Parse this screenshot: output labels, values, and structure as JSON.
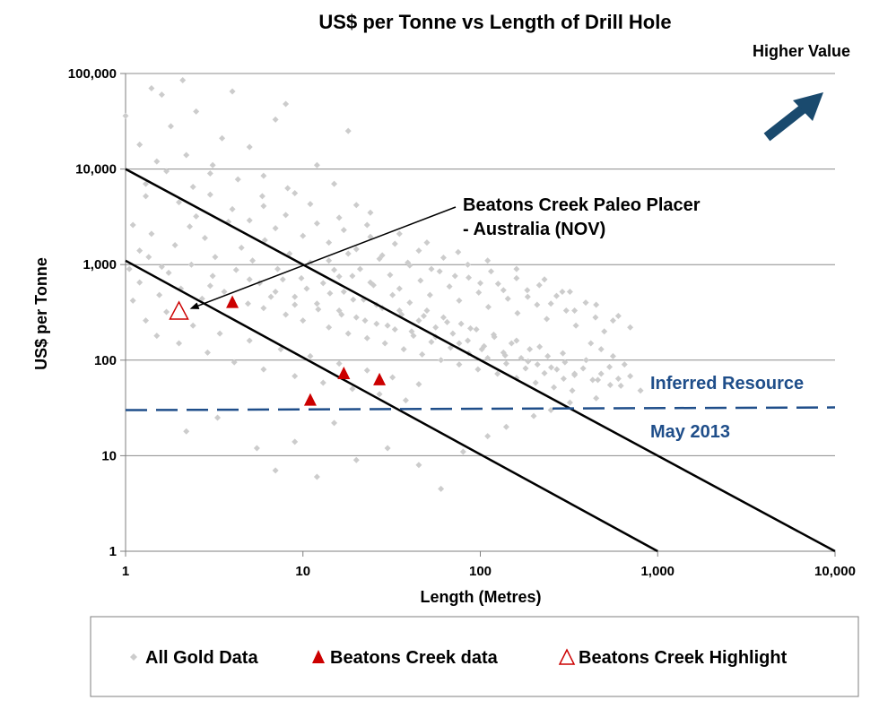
{
  "chart_data": {
    "type": "scatter",
    "title": "US$ per Tonne vs Length of Drill Hole",
    "xlabel": "Length (Metres)",
    "ylabel": "US$ per Tonne",
    "xscale": "log",
    "yscale": "log",
    "xlim": [
      1,
      10000
    ],
    "ylim": [
      1,
      100000
    ],
    "x_ticks": [
      {
        "value": 1,
        "label": "1"
      },
      {
        "value": 10,
        "label": "10"
      },
      {
        "value": 100,
        "label": "100"
      },
      {
        "value": 1000,
        "label": "1,000"
      },
      {
        "value": 10000,
        "label": "10,000"
      }
    ],
    "y_ticks": [
      {
        "value": 1,
        "label": "1"
      },
      {
        "value": 10,
        "label": "10"
      },
      {
        "value": 100,
        "label": "100"
      },
      {
        "value": 1000,
        "label": "1,000"
      },
      {
        "value": 10000,
        "label": "10,000"
      },
      {
        "value": 100000,
        "label": "100,000"
      }
    ],
    "grid": "horizontal",
    "legend_position": "bottom",
    "series": [
      {
        "name": "All Gold Data",
        "marker": "diamond",
        "color": "#cccccc",
        "points": [
          [
            1,
            36000
          ],
          [
            1.2,
            18000
          ],
          [
            1.4,
            70000
          ],
          [
            1.5,
            12000
          ],
          [
            1.3,
            5200
          ],
          [
            1.1,
            2600
          ],
          [
            1.6,
            60000
          ],
          [
            1.8,
            28000
          ],
          [
            2.1,
            85000
          ],
          [
            2.2,
            14000
          ],
          [
            2.5,
            40000
          ],
          [
            3,
            9000
          ],
          [
            3.5,
            21000
          ],
          [
            4,
            65000
          ],
          [
            5,
            17000
          ],
          [
            6,
            8500
          ],
          [
            7,
            33000
          ],
          [
            8,
            48000
          ],
          [
            9,
            5600
          ],
          [
            12,
            11000
          ],
          [
            15,
            7000
          ],
          [
            20,
            4200
          ],
          [
            24,
            3500
          ],
          [
            18,
            25000
          ],
          [
            1.2,
            1400
          ],
          [
            1.4,
            2100
          ],
          [
            1.6,
            950
          ],
          [
            1.9,
            1600
          ],
          [
            2.3,
            2500
          ],
          [
            2.8,
            1900
          ],
          [
            3.2,
            1200
          ],
          [
            3.8,
            2800
          ],
          [
            4.5,
            1500
          ],
          [
            5.2,
            1100
          ],
          [
            6.1,
            1800
          ],
          [
            7.2,
            900
          ],
          [
            8.4,
            1300
          ],
          [
            9.8,
            720
          ],
          [
            11,
            1050
          ],
          [
            13,
            640
          ],
          [
            15,
            880
          ],
          [
            17,
            520
          ],
          [
            19,
            760
          ],
          [
            22,
            430
          ],
          [
            25,
            610
          ],
          [
            28,
            350
          ],
          [
            32,
            480
          ],
          [
            36,
            300
          ],
          [
            40,
            400
          ],
          [
            45,
            260
          ],
          [
            50,
            330
          ],
          [
            56,
            220
          ],
          [
            62,
            280
          ],
          [
            70,
            190
          ],
          [
            78,
            240
          ],
          [
            85,
            160
          ],
          [
            95,
            210
          ],
          [
            105,
            140
          ],
          [
            120,
            175
          ],
          [
            135,
            120
          ],
          [
            150,
            150
          ],
          [
            170,
            105
          ],
          [
            190,
            130
          ],
          [
            210,
            90
          ],
          [
            240,
            110
          ],
          [
            270,
            80
          ],
          [
            300,
            95
          ],
          [
            340,
            70
          ],
          [
            380,
            82
          ],
          [
            430,
            62
          ],
          [
            480,
            72
          ],
          [
            540,
            55
          ],
          [
            600,
            64
          ],
          [
            3,
            600
          ],
          [
            4,
            420
          ],
          [
            5,
            700
          ],
          [
            6,
            350
          ],
          [
            7,
            520
          ],
          [
            8,
            300
          ],
          [
            9,
            460
          ],
          [
            10,
            260
          ],
          [
            12,
            390
          ],
          [
            14,
            220
          ],
          [
            16,
            330
          ],
          [
            18,
            190
          ],
          [
            20,
            280
          ],
          [
            23,
            170
          ],
          [
            26,
            240
          ],
          [
            29,
            150
          ],
          [
            33,
            210
          ],
          [
            37,
            130
          ],
          [
            42,
            180
          ],
          [
            47,
            115
          ],
          [
            53,
            155
          ],
          [
            60,
            100
          ],
          [
            68,
            135
          ],
          [
            76,
            90
          ],
          [
            86,
            118
          ],
          [
            97,
            80
          ],
          [
            110,
            105
          ],
          [
            125,
            72
          ],
          [
            140,
            92
          ],
          [
            160,
            65
          ],
          [
            180,
            82
          ],
          [
            205,
            58
          ],
          [
            230,
            73
          ],
          [
            260,
            52
          ],
          [
            295,
            64
          ],
          [
            330,
            48
          ],
          [
            2,
            4500
          ],
          [
            2.5,
            3200
          ],
          [
            3,
            5400
          ],
          [
            4,
            3800
          ],
          [
            5,
            2900
          ],
          [
            6,
            4100
          ],
          [
            7,
            2400
          ],
          [
            8,
            3300
          ],
          [
            10,
            2000
          ],
          [
            12,
            2700
          ],
          [
            14,
            1700
          ],
          [
            17,
            2300
          ],
          [
            20,
            1450
          ],
          [
            24,
            1950
          ],
          [
            28,
            1250
          ],
          [
            33,
            1650
          ],
          [
            39,
            1050
          ],
          [
            45,
            1400
          ],
          [
            53,
            900
          ],
          [
            62,
            1180
          ],
          [
            72,
            760
          ],
          [
            85,
            1000
          ],
          [
            100,
            640
          ],
          [
            115,
            850
          ],
          [
            135,
            540
          ],
          [
            160,
            720
          ],
          [
            185,
            460
          ],
          [
            215,
            610
          ],
          [
            250,
            390
          ],
          [
            290,
            520
          ],
          [
            340,
            330
          ],
          [
            1.1,
            420
          ],
          [
            1.3,
            260
          ],
          [
            1.5,
            180
          ],
          [
            1.7,
            320
          ],
          [
            2,
            150
          ],
          [
            2.4,
            230
          ],
          [
            2.9,
            120
          ],
          [
            3.4,
            190
          ],
          [
            4.1,
            95
          ],
          [
            5,
            160
          ],
          [
            6,
            80
          ],
          [
            7.5,
            130
          ],
          [
            9,
            68
          ],
          [
            11,
            110
          ],
          [
            13,
            58
          ],
          [
            16,
            92
          ],
          [
            19,
            50
          ],
          [
            23,
            78
          ],
          [
            27,
            44
          ],
          [
            32,
            66
          ],
          [
            38,
            38
          ],
          [
            45,
            56
          ],
          [
            2.2,
            18
          ],
          [
            3.3,
            25
          ],
          [
            5.5,
            12
          ],
          [
            7,
            7
          ],
          [
            12,
            6
          ],
          [
            9,
            14
          ],
          [
            15,
            22
          ],
          [
            20,
            9
          ],
          [
            30,
            12
          ],
          [
            45,
            8
          ],
          [
            60,
            4.5
          ],
          [
            80,
            11
          ],
          [
            110,
            16
          ],
          [
            140,
            20
          ],
          [
            200,
            26
          ],
          [
            250,
            30
          ],
          [
            320,
            36
          ],
          [
            450,
            40
          ],
          [
            1.05,
            900
          ],
          [
            1.2,
            650
          ],
          [
            1.35,
            1200
          ],
          [
            1.55,
            480
          ],
          [
            1.75,
            820
          ],
          [
            2.05,
            560
          ],
          [
            2.35,
            1000
          ],
          [
            2.7,
            440
          ],
          [
            3.1,
            760
          ],
          [
            3.6,
            520
          ],
          [
            4.2,
            880
          ],
          [
            4.9,
            390
          ],
          [
            5.7,
            640
          ],
          [
            6.6,
            460
          ],
          [
            7.7,
            700
          ],
          [
            9,
            380
          ],
          [
            10.5,
            560
          ],
          [
            12.2,
            340
          ],
          [
            14.2,
            500
          ],
          [
            16.5,
            300
          ],
          [
            19.2,
            430
          ],
          [
            22.4,
            260
          ],
          [
            26,
            380
          ],
          [
            30,
            230
          ],
          [
            35,
            330
          ],
          [
            41,
            200
          ],
          [
            48,
            290
          ],
          [
            56,
            175
          ],
          [
            65,
            250
          ],
          [
            76,
            150
          ],
          [
            88,
            215
          ],
          [
            102,
            130
          ],
          [
            119,
            185
          ],
          [
            138,
            112
          ],
          [
            160,
            160
          ],
          [
            186,
            97
          ],
          [
            216,
            138
          ],
          [
            251,
            84
          ],
          [
            292,
            118
          ],
          [
            340,
            72
          ],
          [
            395,
            100
          ],
          [
            460,
            62
          ],
          [
            535,
            85
          ],
          [
            620,
            54
          ],
          [
            700,
            68
          ],
          [
            800,
            48
          ],
          [
            650,
            90
          ],
          [
            560,
            110
          ],
          [
            480,
            130
          ],
          [
            420,
            150
          ],
          [
            14,
            1100
          ],
          [
            16,
            750
          ],
          [
            18,
            1300
          ],
          [
            21,
            900
          ],
          [
            24,
            650
          ],
          [
            27,
            1150
          ],
          [
            31,
            780
          ],
          [
            35,
            560
          ],
          [
            40,
            980
          ],
          [
            46,
            680
          ],
          [
            52,
            480
          ],
          [
            59,
            850
          ],
          [
            67,
            590
          ],
          [
            76,
            420
          ],
          [
            86,
            730
          ],
          [
            98,
            510
          ],
          [
            111,
            360
          ],
          [
            126,
            630
          ],
          [
            143,
            440
          ],
          [
            162,
            310
          ],
          [
            184,
            540
          ],
          [
            209,
            380
          ],
          [
            237,
            270
          ],
          [
            269,
            470
          ],
          [
            305,
            330
          ],
          [
            346,
            230
          ],
          [
            393,
            400
          ],
          [
            446,
            280
          ],
          [
            500,
            200
          ],
          [
            560,
            260
          ],
          [
            1.3,
            7000
          ],
          [
            1.7,
            9500
          ],
          [
            2.4,
            6500
          ],
          [
            3.1,
            11000
          ],
          [
            4.3,
            7800
          ],
          [
            5.9,
            5200
          ],
          [
            8.2,
            6300
          ],
          [
            11,
            4300
          ],
          [
            16,
            3100
          ],
          [
            23,
            2600
          ],
          [
            35,
            2100
          ],
          [
            50,
            1700
          ],
          [
            75,
            1350
          ],
          [
            110,
            1100
          ],
          [
            160,
            900
          ],
          [
            230,
            700
          ],
          [
            320,
            520
          ],
          [
            450,
            380
          ],
          [
            600,
            290
          ],
          [
            700,
            220
          ]
        ]
      },
      {
        "name": "Beatons Creek data",
        "marker": "triangle-filled",
        "color": "#cc0000",
        "points": [
          [
            4,
            400
          ],
          [
            11,
            38
          ],
          [
            17,
            72
          ],
          [
            27,
            62
          ]
        ]
      },
      {
        "name": "Beatons Creek Highlight",
        "marker": "triangle-open",
        "color": "#cc0000",
        "points": [
          [
            2,
            320
          ]
        ]
      }
    ],
    "reference_lines": [
      {
        "style": "solid",
        "color": "#000000",
        "from": [
          1,
          10000
        ],
        "to": [
          10000,
          1
        ]
      },
      {
        "style": "solid",
        "color": "#000000",
        "from": [
          1,
          1100
        ],
        "to": [
          1000,
          1
        ]
      },
      {
        "style": "dashed",
        "color": "#1f4e8a",
        "from": [
          1,
          30
        ],
        "to": [
          10000,
          32
        ]
      }
    ],
    "annotations": [
      {
        "text_lines": [
          "Beatons Creek Paleo Placer",
          "- Australia (NOV)"
        ],
        "arrow_to": [
          2,
          320
        ]
      },
      {
        "text": "Inferred Resource",
        "color": "#1f4e8a"
      },
      {
        "text": "May 2013",
        "color": "#1f4e8a"
      },
      {
        "text": "Higher Value",
        "icon": "arrow-up-right-icon",
        "icon_color": "#1a4a6e"
      }
    ]
  }
}
